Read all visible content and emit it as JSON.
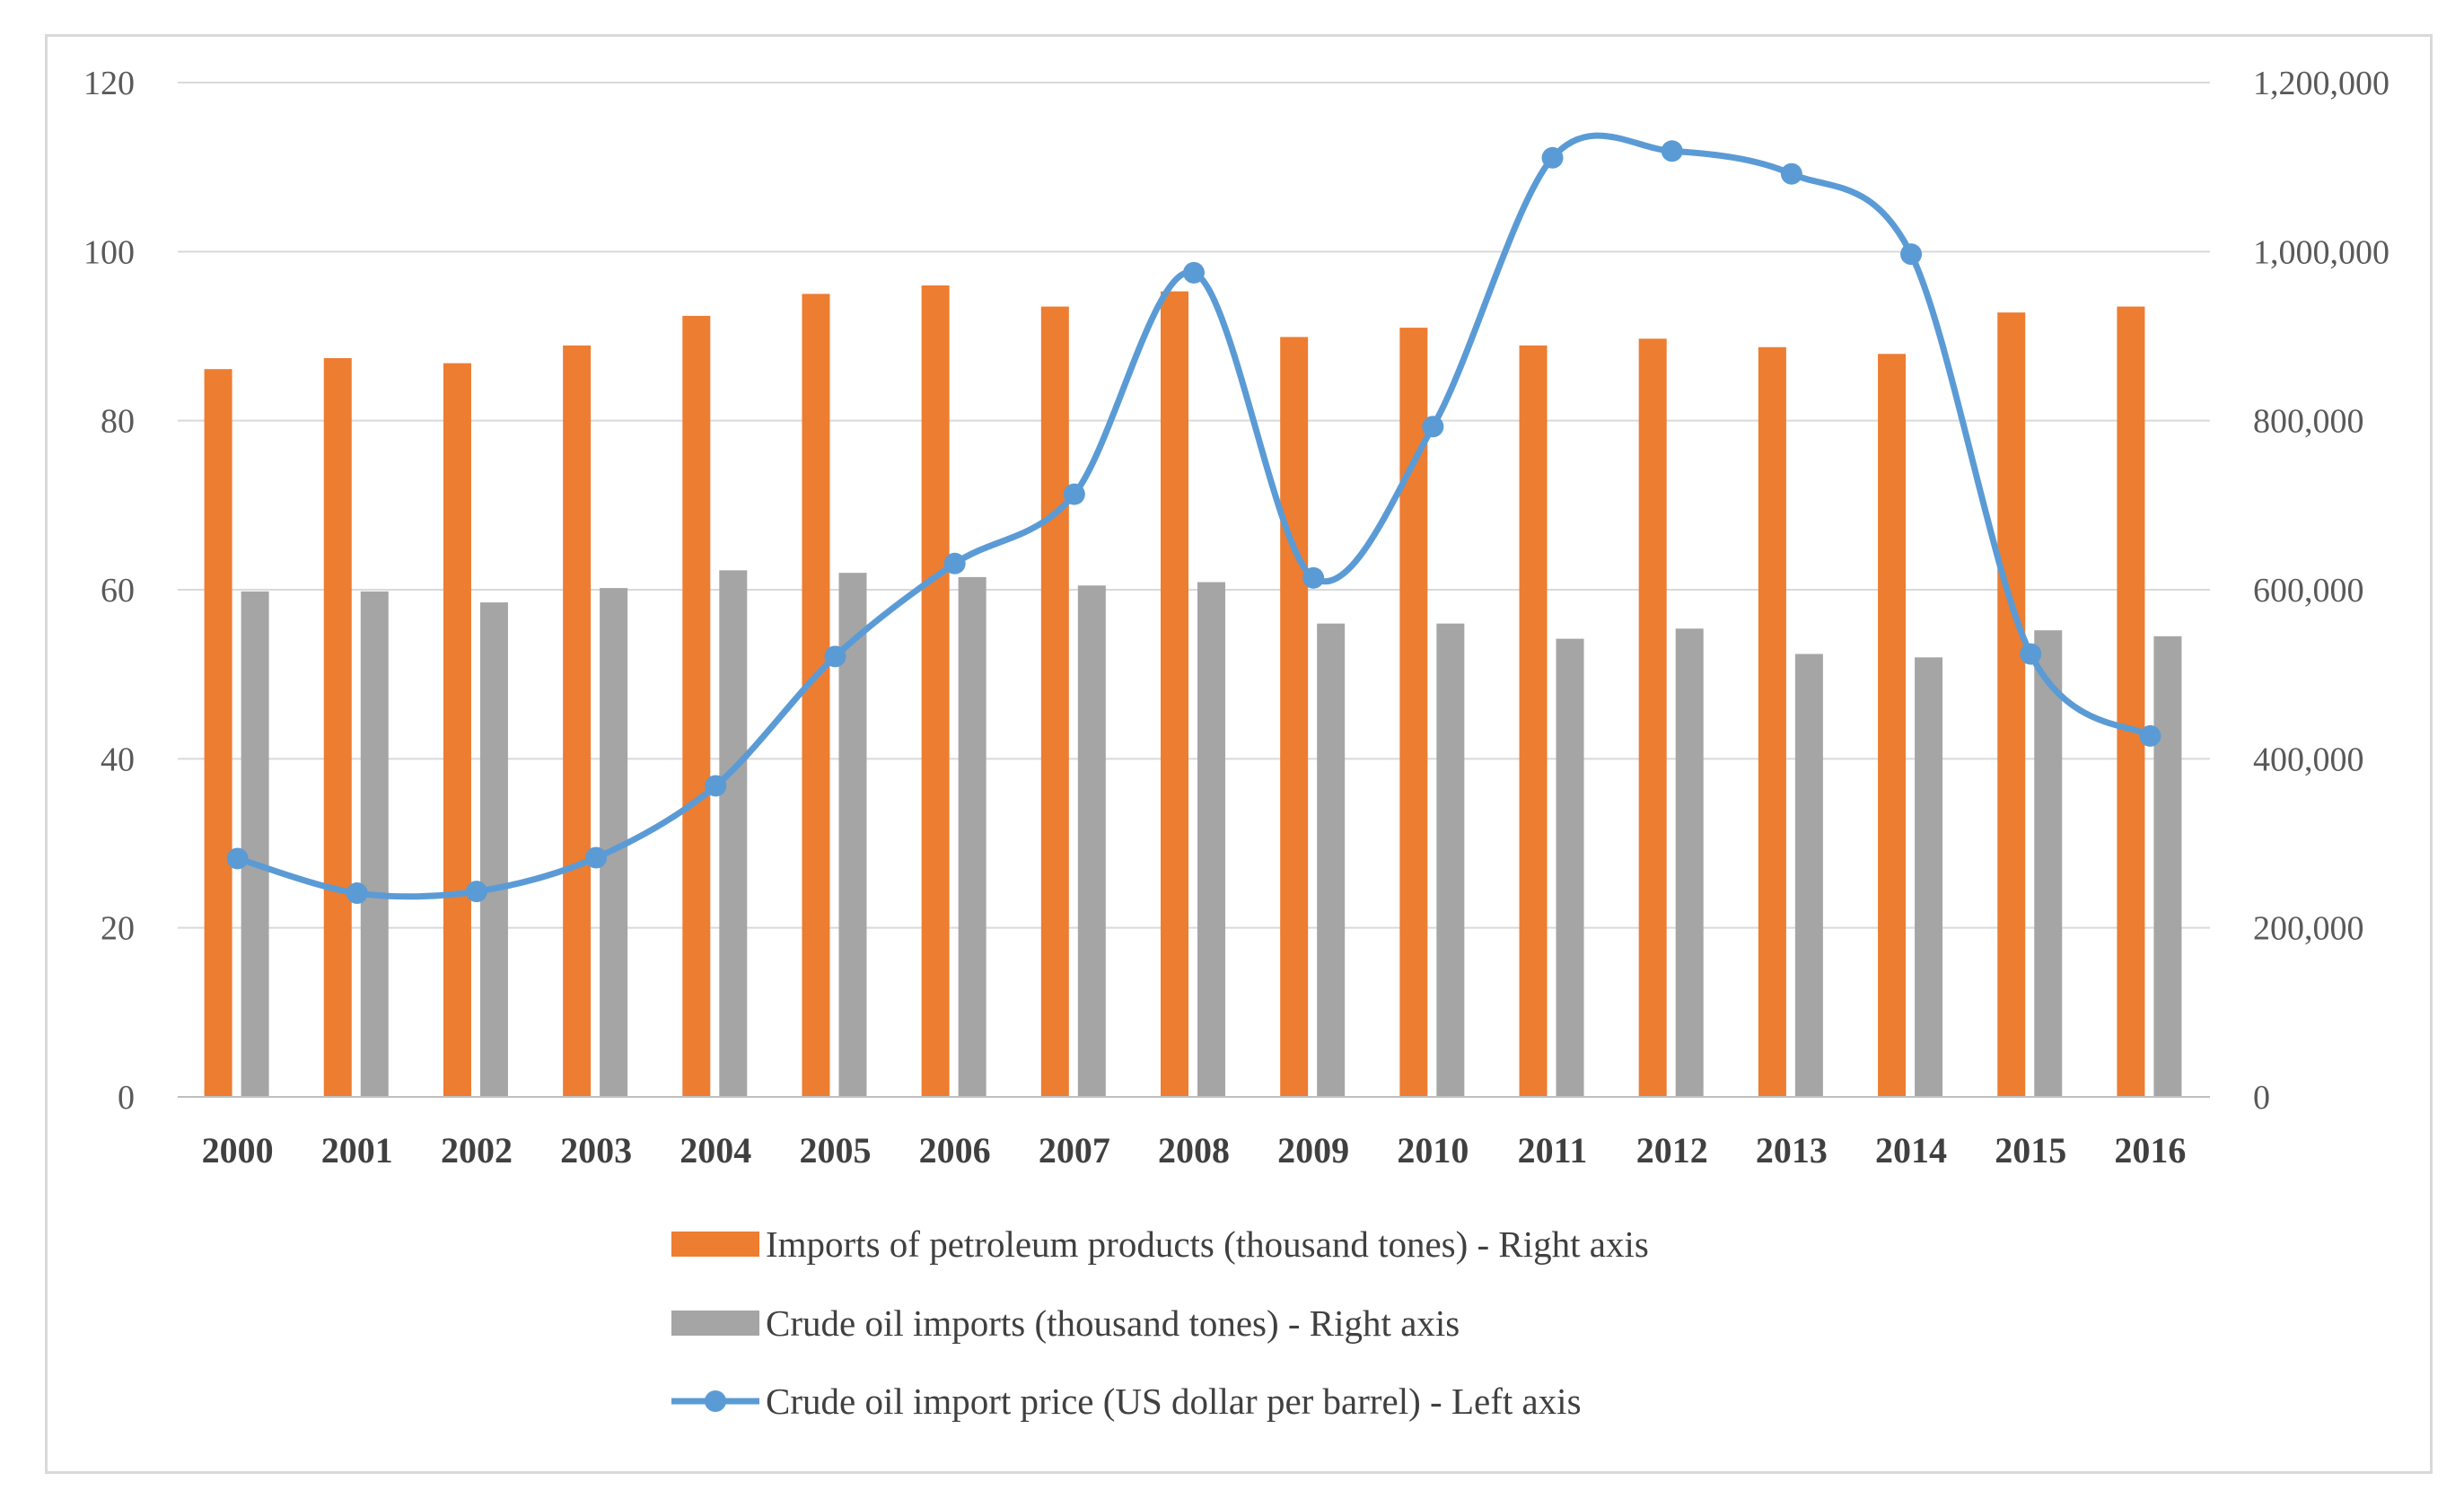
{
  "chart_data": {
    "type": "bar",
    "categories": [
      "2000",
      "2001",
      "2002",
      "2003",
      "2004",
      "2005",
      "2006",
      "2007",
      "2008",
      "2009",
      "2010",
      "2011",
      "2012",
      "2013",
      "2014",
      "2015",
      "2016"
    ],
    "series": [
      {
        "name": "Imports of petroleum products (thousand tones) - Right axis",
        "type": "bar",
        "axis": "right",
        "color": "#ed7d31",
        "values": [
          861000,
          874000,
          868000,
          889000,
          924000,
          950000,
          960000,
          935000,
          953000,
          899000,
          910000,
          889000,
          897000,
          887000,
          879000,
          928000,
          935000
        ]
      },
      {
        "name": "Crude oil imports (thousand tones) - Right axis",
        "type": "bar",
        "axis": "right",
        "color": "#a5a5a5",
        "values": [
          598000,
          598000,
          585000,
          602000,
          623000,
          620000,
          615000,
          605000,
          609000,
          560000,
          560000,
          542000,
          554000,
          524000,
          520000,
          552000,
          545000
        ]
      },
      {
        "name": "Crude oil import price (US dollar per barrel) - Left axis",
        "type": "line",
        "axis": "left",
        "color": "#5b9bd5",
        "values": [
          28.2,
          24.1,
          24.3,
          28.3,
          36.8,
          52.1,
          63.1,
          71.3,
          97.5,
          61.4,
          79.3,
          111.1,
          111.9,
          109.2,
          99.7,
          52.4,
          42.7
        ]
      }
    ],
    "left_axis": {
      "ylim": [
        0,
        120
      ],
      "ticks": [
        "0",
        "20",
        "40",
        "60",
        "80",
        "100",
        "120"
      ]
    },
    "right_axis": {
      "ylim": [
        0,
        1200000
      ],
      "ticks": [
        "0",
        "200,000",
        "400,000",
        "600,000",
        "800,000",
        "1,000,000",
        "1,200,000"
      ]
    },
    "grid": true,
    "legend_position": "bottom"
  }
}
